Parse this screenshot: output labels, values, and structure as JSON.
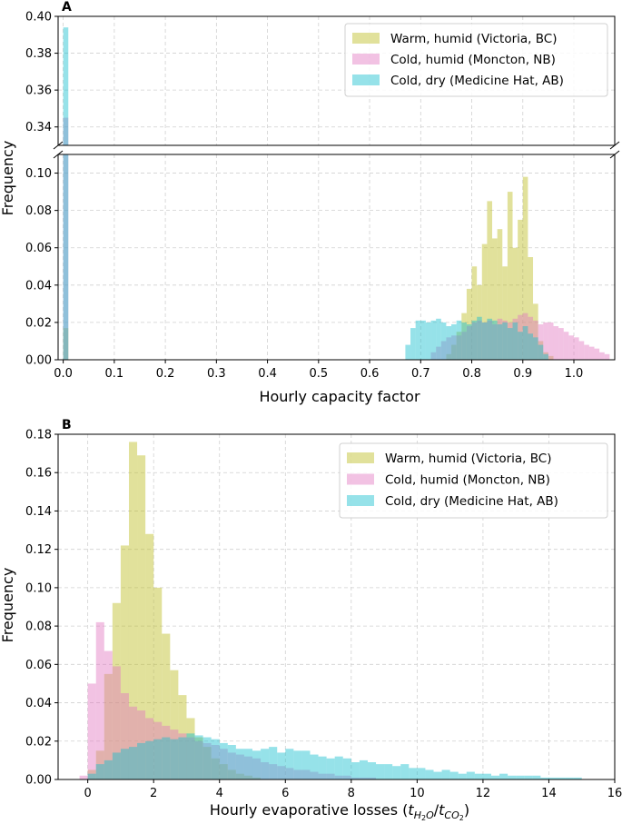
{
  "chart_data": [
    {
      "type": "bar",
      "panel": "A",
      "xlabel": "Hourly capacity factor",
      "ylabel": "Frequency",
      "xlim": [
        -0.01,
        1.08
      ],
      "ylim_lower": [
        0,
        0.11
      ],
      "ylim_upper": [
        0.33,
        0.4
      ],
      "xticks": [
        "0.0",
        "0.1",
        "0.2",
        "0.3",
        "0.4",
        "0.5",
        "0.6",
        "0.7",
        "0.8",
        "0.9",
        "1.0"
      ],
      "yticks_lower": [
        "0.00",
        "0.02",
        "0.04",
        "0.06",
        "0.08",
        "0.10"
      ],
      "yticks_upper": [
        "0.34",
        "0.36",
        "0.38",
        "0.40"
      ],
      "grid": true,
      "legend_position": "top-right",
      "bin_width": 0.01,
      "series": [
        {
          "name": "Warm, humid (Victoria, BC)",
          "color": "#bcbd22",
          "zero_bin": 0.017,
          "x_start": 0.75,
          "values": [
            0.003,
            0.008,
            0.015,
            0.025,
            0.038,
            0.05,
            0.04,
            0.062,
            0.085,
            0.065,
            0.07,
            0.05,
            0.09,
            0.06,
            0.075,
            0.098,
            0.055,
            0.03,
            0.01,
            0.004,
            0.002
          ]
        },
        {
          "name": "Cold, humid (Moncton, NB)",
          "color": "#e377c2",
          "zero_bin": 0.345,
          "x_start": 0.72,
          "values": [
            0.004,
            0.007,
            0.01,
            0.012,
            0.013,
            0.013,
            0.015,
            0.018,
            0.02,
            0.021,
            0.02,
            0.021,
            0.019,
            0.022,
            0.021,
            0.02,
            0.022,
            0.024,
            0.025,
            0.023,
            0.021,
            0.019,
            0.02,
            0.02,
            0.018,
            0.017,
            0.015,
            0.013,
            0.012,
            0.01,
            0.008,
            0.007,
            0.006,
            0.004,
            0.003
          ]
        },
        {
          "name": "Cold, dry (Medicine Hat, AB)",
          "color": "#17becf",
          "zero_bin": 0.394,
          "x_start": 0.67,
          "values": [
            0.008,
            0.017,
            0.021,
            0.021,
            0.02,
            0.021,
            0.022,
            0.02,
            0.018,
            0.019,
            0.021,
            0.02,
            0.019,
            0.021,
            0.023,
            0.02,
            0.022,
            0.021,
            0.019,
            0.02,
            0.017,
            0.02,
            0.015,
            0.018,
            0.014,
            0.012,
            0.008,
            0.003
          ]
        }
      ]
    },
    {
      "type": "bar",
      "panel": "B",
      "xlabel": "Hourly evaporative losses",
      "ylabel": "Frequency",
      "xlim": [
        -0.9,
        16.0
      ],
      "ylim": [
        0,
        0.18
      ],
      "xticks": [
        "0",
        "2",
        "4",
        "6",
        "8",
        "10",
        "12",
        "14",
        "16"
      ],
      "yticks": [
        "0.00",
        "0.02",
        "0.04",
        "0.06",
        "0.08",
        "0.10",
        "0.12",
        "0.14",
        "0.16",
        "0.18"
      ],
      "grid": true,
      "legend_position": "top-right",
      "bin_width": 0.25,
      "series": [
        {
          "name": "Warm, humid (Victoria, BC)",
          "color": "#bcbd22",
          "x_start": 0.0,
          "values": [
            0.005,
            0.015,
            0.055,
            0.092,
            0.122,
            0.176,
            0.169,
            0.128,
            0.1,
            0.076,
            0.057,
            0.044,
            0.032,
            0.022,
            0.017,
            0.011,
            0.008,
            0.005,
            0.003,
            0.002,
            0.001
          ]
        },
        {
          "name": "Cold, humid (Moncton, NB)",
          "color": "#e377c2",
          "x_start": -0.25,
          "values": [
            0.002,
            0.05,
            0.082,
            0.067,
            0.059,
            0.045,
            0.038,
            0.036,
            0.032,
            0.03,
            0.028,
            0.026,
            0.024,
            0.022,
            0.02,
            0.019,
            0.018,
            0.016,
            0.014,
            0.013,
            0.012,
            0.011,
            0.009,
            0.008,
            0.007,
            0.006,
            0.005,
            0.005,
            0.004,
            0.003,
            0.003,
            0.002,
            0.002,
            0.001,
            0.001,
            0.001
          ]
        },
        {
          "name": "Cold, dry (Medicine Hat, AB)",
          "color": "#17becf",
          "x_start": 0.0,
          "values": [
            0.003,
            0.008,
            0.01,
            0.014,
            0.016,
            0.017,
            0.019,
            0.02,
            0.021,
            0.022,
            0.021,
            0.022,
            0.024,
            0.023,
            0.022,
            0.021,
            0.019,
            0.018,
            0.016,
            0.016,
            0.015,
            0.016,
            0.017,
            0.014,
            0.016,
            0.015,
            0.015,
            0.013,
            0.012,
            0.011,
            0.012,
            0.011,
            0.009,
            0.01,
            0.009,
            0.008,
            0.008,
            0.007,
            0.008,
            0.006,
            0.006,
            0.005,
            0.004,
            0.005,
            0.004,
            0.003,
            0.004,
            0.003,
            0.003,
            0.002,
            0.003,
            0.002,
            0.002,
            0.002,
            0.002,
            0.001,
            0.001,
            0.001,
            0.001,
            0.001
          ]
        }
      ]
    }
  ],
  "panelA": {
    "letter": "A"
  },
  "panelB": {
    "letter": "B",
    "xlabel_prefix": "Hourly evaporative losses (",
    "xlabel_t": "t",
    "xlabel_sub_num": "H",
    "xlabel_sub_num_small": "2",
    "xlabel_sub_num_tail": "O",
    "xlabel_slash": "/",
    "xlabel_sub_den": "CO",
    "xlabel_sub_den_small": "2",
    "xlabel_suffix": ")"
  }
}
